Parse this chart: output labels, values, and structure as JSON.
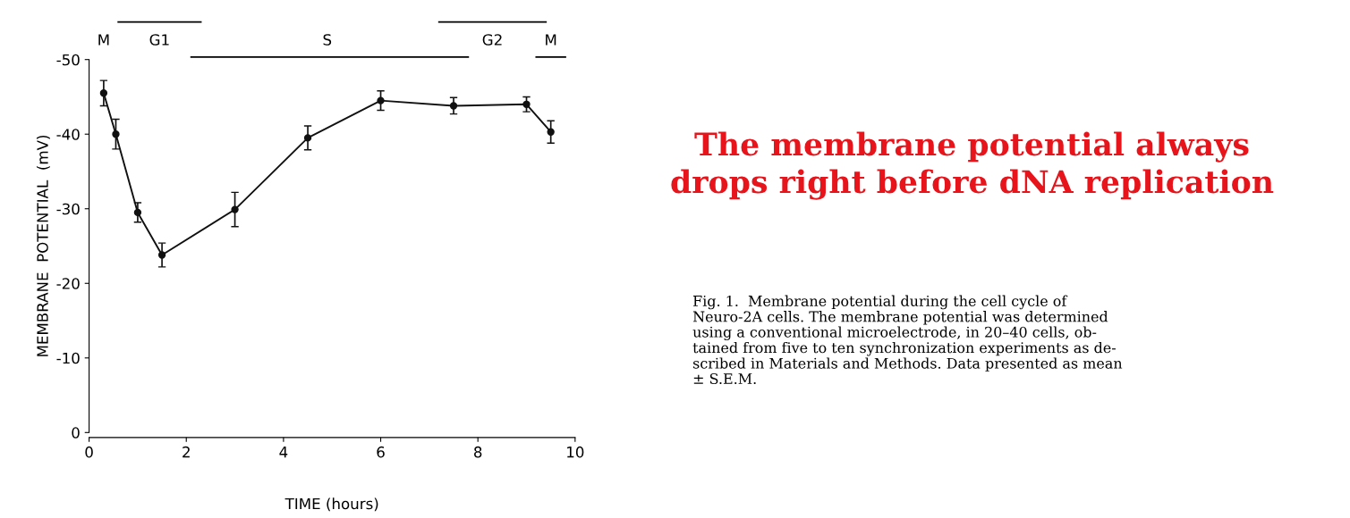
{
  "chart_data": {
    "type": "line",
    "title": "The membrane potential always\ndrops right before dNA replication",
    "xlabel": "TIME (hours)",
    "ylabel": "MEMBRANE  POTENTIAL  (mV)",
    "x": [
      0.3,
      0.55,
      1.0,
      1.5,
      3.0,
      4.5,
      6.0,
      7.5,
      9.0,
      9.5
    ],
    "series": [
      {
        "color": "#111111",
        "values": [
          -45.5,
          -40.0,
          -29.5,
          -23.8,
          -29.9,
          -39.5,
          -44.5,
          -43.8,
          -44.0,
          -40.3
        ],
        "errors": [
          1.7,
          2.0,
          1.3,
          1.6,
          2.3,
          1.6,
          1.3,
          1.1,
          1.0,
          1.5
        ]
      }
    ],
    "xlim": [
      0,
      10
    ],
    "xticks": [
      0,
      2,
      4,
      6,
      8,
      10
    ],
    "ylim": [
      0,
      -50
    ],
    "yticks": [
      0,
      -10,
      -20,
      -30,
      -40,
      -50
    ],
    "annotations": [
      "M",
      "G1",
      "S",
      "G2",
      "M",
      "Fig. 1.  Membrane potential during the cell cycle of\nNeuro-2A cells. The membrane potential was determined\nusing a conventional microelectrode, in 20–40 cells, ob-\ntained from five to ten synchronization experiments as de-\nscribed in Materials and Methods. Data presented as mean\n± S.E.M."
    ],
    "marker": "circle",
    "line_style": "solid",
    "grid": false,
    "legend": false
  }
}
